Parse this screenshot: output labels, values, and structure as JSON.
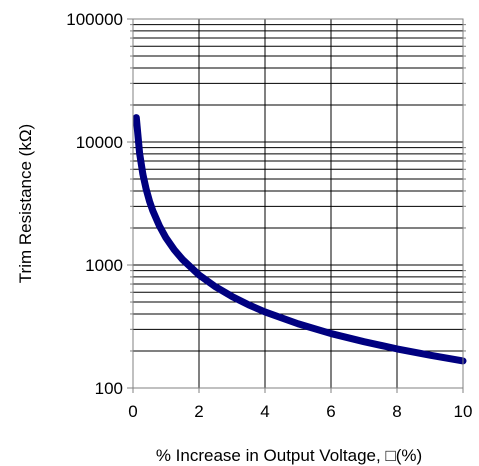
{
  "chart_data": {
    "type": "line",
    "title": "",
    "xlabel": "% Increase in Output Voltage, □(%)",
    "ylabel": "Trim Resistance (kΩ)",
    "xlim": [
      0,
      10
    ],
    "ylim": [
      100,
      100000
    ],
    "y_scale": "log",
    "grid": true,
    "legend": "none",
    "x_ticks": [
      {
        "value": 0,
        "label": "0"
      },
      {
        "value": 2,
        "label": "2"
      },
      {
        "value": 4,
        "label": "4"
      },
      {
        "value": 6,
        "label": "6"
      },
      {
        "value": 8,
        "label": "8"
      },
      {
        "value": 10,
        "label": "10"
      }
    ],
    "y_ticks": [
      {
        "value": 100,
        "label": "100"
      },
      {
        "value": 1000,
        "label": "1000"
      },
      {
        "value": 10000,
        "label": "10000"
      },
      {
        "value": 100000,
        "label": "100000"
      }
    ],
    "series": [
      {
        "color": "#000080",
        "x": [
          0.1,
          0.2,
          0.3,
          0.4,
          0.5,
          0.6,
          0.8,
          1.0,
          1.25,
          1.5,
          2.0,
          2.5,
          3.0,
          3.5,
          4.0,
          5.0,
          6.0,
          7.0,
          8.0,
          9.0,
          10.0
        ],
        "y": [
          15800,
          8100,
          5450,
          4120,
          3300,
          2760,
          2080,
          1660,
          1330,
          1110,
          830,
          665,
          555,
          475,
          415,
          333,
          277,
          238,
          208,
          185,
          166
        ]
      }
    ]
  },
  "colors": {
    "line": "#000080",
    "grid": "#000000",
    "axis": "#808080"
  }
}
